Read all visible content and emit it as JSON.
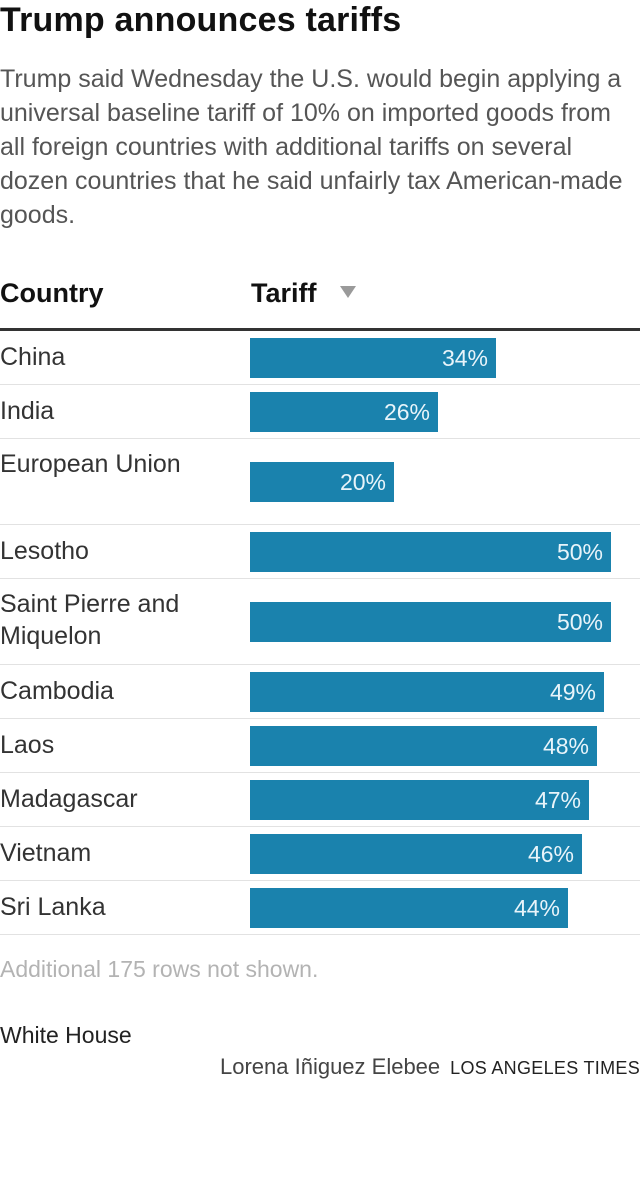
{
  "title": "Trump announces tariffs",
  "subtitle": "Trump said Wednesday the U.S. would begin applying a universal baseline tariff of 10% on imported goods from all foreign countries with additional tariffs on several dozen countries that he said unfairly tax American-made goods.",
  "table": {
    "country_header": "Country",
    "tariff_header": "Tariff",
    "sort_icon": "sort-descending-triangle-icon"
  },
  "chart_data": {
    "type": "bar",
    "orientation": "horizontal",
    "categories": [
      "China",
      "India",
      "European Union",
      "Lesotho",
      "Saint Pierre and Miquelon",
      "Cambodia",
      "Laos",
      "Madagascar",
      "Vietnam",
      "Sri Lanka"
    ],
    "values": [
      34,
      26,
      20,
      50,
      50,
      49,
      48,
      47,
      46,
      44
    ],
    "labels": [
      "34%",
      "26%",
      "20%",
      "50%",
      "50%",
      "49%",
      "48%",
      "47%",
      "46%",
      "44%"
    ],
    "xlim": [
      0,
      54
    ],
    "bar_color": "#1a82ad"
  },
  "note": "Additional 175 rows not shown.",
  "source": "White House",
  "byline": {
    "author": "Lorena Iñiguez Elebee",
    "organization": "LOS ANGELES TIMES"
  },
  "colors": {
    "bar": "#1a82ad",
    "bar_label": "#e8f4fa",
    "note": "#b3b3b3"
  }
}
